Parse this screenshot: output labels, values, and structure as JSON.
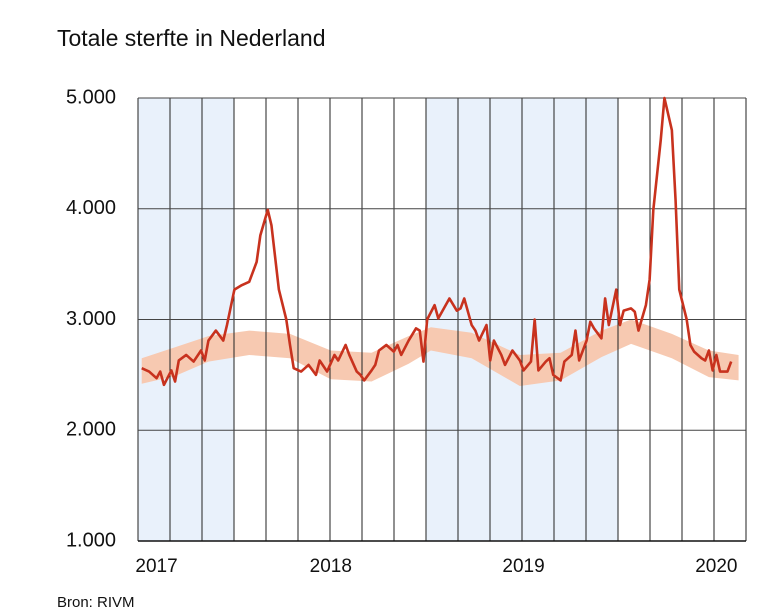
{
  "chart_data": {
    "type": "line",
    "title": "Totale sterfte in Nederland",
    "source": "Bron: RIVM",
    "xlim": [
      0,
      164
    ],
    "ylim": [
      1000,
      5000
    ],
    "xticks": [
      {
        "value": 5,
        "label": "2017"
      },
      {
        "value": 52,
        "label": "2018"
      },
      {
        "value": 104,
        "label": "2019"
      },
      {
        "value": 156,
        "label": "2020"
      }
    ],
    "yticks": [
      {
        "value": 1000,
        "label": "1.000"
      },
      {
        "value": 2000,
        "label": "2.000"
      },
      {
        "value": 3000,
        "label": "3.000"
      },
      {
        "value": 4000,
        "label": "4.000"
      },
      {
        "value": 5000,
        "label": "5.000"
      }
    ],
    "grid": true,
    "band": {
      "color": "#f7c9b1",
      "x": [
        1,
        10,
        19,
        30,
        41,
        52,
        63,
        73,
        79,
        90,
        103,
        114,
        125,
        133,
        144,
        154,
        162
      ],
      "upper": [
        2650,
        2750,
        2850,
        2900,
        2870,
        2720,
        2700,
        2850,
        2930,
        2880,
        2680,
        2700,
        2900,
        3000,
        2870,
        2720,
        2680
      ],
      "lower": [
        2420,
        2490,
        2620,
        2680,
        2650,
        2460,
        2440,
        2600,
        2720,
        2650,
        2400,
        2450,
        2660,
        2780,
        2650,
        2480,
        2450
      ]
    },
    "series": [
      {
        "color": "#c8321e",
        "x": [
          1,
          3,
          5,
          6,
          7,
          9,
          10,
          11,
          13,
          15,
          17,
          18,
          19,
          21,
          23,
          24,
          26,
          28,
          30,
          32,
          33,
          35,
          36,
          38,
          40,
          41,
          42,
          44,
          46,
          48,
          49,
          51,
          53,
          54,
          56,
          57,
          59,
          60,
          61,
          63,
          64,
          65,
          67,
          69,
          70,
          71,
          73,
          75,
          76,
          77,
          78,
          80,
          81,
          84,
          86,
          87,
          88,
          90,
          91,
          92,
          94,
          95,
          96,
          98,
          99,
          101,
          103,
          104,
          106,
          107,
          108,
          110,
          111,
          112,
          114,
          115,
          117,
          118,
          119,
          121,
          122,
          123,
          125,
          126,
          127,
          129,
          130,
          131,
          133,
          134,
          135,
          137,
          138,
          139,
          141,
          142,
          144,
          145,
          146,
          148,
          149,
          150,
          152,
          153,
          154,
          155,
          156,
          157,
          159,
          160
        ],
        "values": [
          2560,
          2530,
          2470,
          2530,
          2410,
          2540,
          2440,
          2630,
          2680,
          2620,
          2720,
          2630,
          2810,
          2900,
          2810,
          2950,
          3270,
          3310,
          3340,
          3520,
          3760,
          3990,
          3850,
          3270,
          3000,
          2770,
          2560,
          2530,
          2590,
          2500,
          2630,
          2530,
          2680,
          2630,
          2770,
          2680,
          2530,
          2500,
          2450,
          2540,
          2590,
          2720,
          2770,
          2710,
          2770,
          2680,
          2810,
          2920,
          2900,
          2620,
          3000,
          3130,
          3010,
          3190,
          3080,
          3100,
          3190,
          2950,
          2900,
          2810,
          2950,
          2630,
          2810,
          2680,
          2590,
          2720,
          2630,
          2540,
          2620,
          3000,
          2540,
          2620,
          2650,
          2500,
          2450,
          2620,
          2680,
          2900,
          2630,
          2810,
          2980,
          2920,
          2830,
          3190,
          2950,
          3270,
          2950,
          3080,
          3100,
          3070,
          2900,
          3130,
          3360,
          3990,
          4620,
          5000,
          4710,
          4080,
          3270,
          3000,
          2770,
          2710,
          2650,
          2630,
          2720,
          2540,
          2680,
          2530,
          2530,
          2620
        ]
      }
    ]
  }
}
